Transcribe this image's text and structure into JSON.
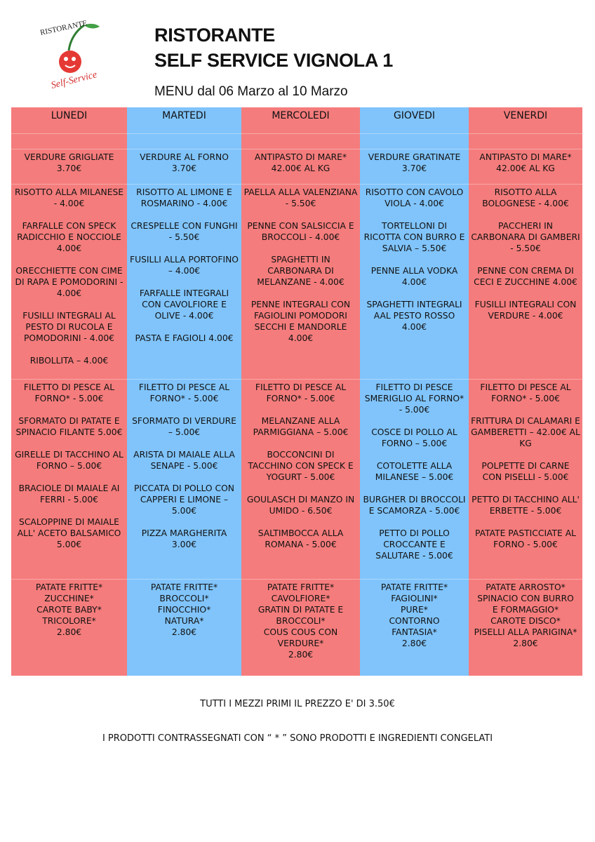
{
  "logo": {
    "top": "RISTORANTE",
    "bottom": "Self-Service"
  },
  "header": {
    "title_line1": "RISTORANTE",
    "title_line2": "SELF SERVICE VIGNOLA 1",
    "subtitle": "MENU dal 06 Marzo al 10 Marzo"
  },
  "columns": [
    {
      "day": "LUNEDI",
      "color": "#f57c7c",
      "antipasti": [
        "VERDURE GRIGLIATE 3.70€"
      ],
      "primi": [
        "RISOTTO ALLA MILANESE - 4.00€",
        "FARFALLE CON SPECK RADICCHIO E NOCCIOLE 4.00€",
        "ORECCHIETTE CON CIME DI RAPA E POMODORINI - 4.00€",
        "FUSILLI INTEGRALI AL PESTO DI RUCOLA E POMODORINI - 4.00€",
        "RIBOLLITA – 4.00€"
      ],
      "secondi": [
        "FILETTO DI PESCE AL FORNO* - 5.00€",
        "SFORMATO DI PATATE E SPINACIO FILANTE 5.00€",
        "GIRELLE DI TACCHINO AL FORNO – 5.00€",
        "BRACIOLE DI MAIALE AI FERRI - 5.00€",
        "SCALOPPINE DI MAIALE ALL' ACETO BALSAMICO 5.00€"
      ],
      "contorni": [
        "PATATE FRITTE*",
        "ZUCCHINE*",
        "CAROTE BABY*",
        "TRICOLORE*",
        "2.80€"
      ]
    },
    {
      "day": "MARTEDI",
      "color": "#80c4fb",
      "antipasti": [
        "VERDURE AL FORNO 3.70€"
      ],
      "primi": [
        "RISOTTO AL LIMONE E ROSMARINO - 4.00€",
        "CRESPELLE CON FUNGHI - 5.50€",
        "FUSILLI ALLA PORTOFINO – 4.00€",
        "FARFALLE INTEGRALI CON CAVOLFIORE E OLIVE - 4.00€",
        "PASTA E FAGIOLI 4.00€"
      ],
      "secondi": [
        "FILETTO DI PESCE AL FORNO* - 5.00€",
        "SFORMATO DI VERDURE – 5.00€",
        "ARISTA DI MAIALE ALLA SENAPE - 5.00€",
        "PICCATA DI POLLO CON CAPPERI E LIMONE – 5.00€",
        "PIZZA MARGHERITA 3.00€"
      ],
      "contorni": [
        "PATATE FRITTE*",
        "BROCCOLI*",
        "FINOCCHIO*",
        "NATURA*",
        "2.80€"
      ]
    },
    {
      "day": "MERCOLEDI",
      "color": "#f57c7c",
      "antipasti": [
        "ANTIPASTO DI MARE* 42.00€ AL KG"
      ],
      "primi": [
        "PAELLA ALLA VALENZIANA - 5.50€",
        "PENNE CON SALSICCIA E BROCCOLI - 4.00€",
        "SPAGHETTI IN CARBONARA DI MELANZANE - 4.00€",
        "PENNE INTEGRALI CON FAGIOLINI POMODORI SECCHI E MANDORLE 4.00€"
      ],
      "secondi": [
        "FILETTO DI PESCE AL FORNO* - 5.00€",
        "MELANZANE ALLA PARMIGGIANA – 5.00€",
        "BOCCONCINI DI TACCHINO CON SPECK E YOGURT - 5.00€",
        "GOULASCH DI MANZO IN UMIDO - 6.50€",
        "SALTIMBOCCA ALLA ROMANA - 5.00€"
      ],
      "contorni": [
        "PATATE FRITTE*",
        "CAVOLFIORE*",
        "GRATIN DI PATATE E",
        "BROCCOLI*",
        "COUS COUS CON",
        "VERDURE*",
        "2.80€"
      ]
    },
    {
      "day": "GIOVEDI",
      "color": "#80c4fb",
      "antipasti": [
        "VERDURE GRATINATE 3.70€"
      ],
      "primi": [
        "RISOTTO CON CAVOLO VIOLA - 4.00€",
        "TORTELLONI DI RICOTTA CON BURRO E SALVIA – 5.50€",
        "PENNE ALLA VODKA 4.00€",
        "SPAGHETTI INTEGRALI AAL PESTO ROSSO 4.00€"
      ],
      "secondi": [
        "FILETTO DI PESCE SMERIGLIO AL FORNO* - 5.00€",
        "COSCE DI POLLO AL FORNO – 5.00€",
        "COTOLETTE ALLA MILANESE – 5.00€",
        "BURGHER DI BROCCOLI E SCAMORZA - 5.00€",
        "PETTO DI POLLO CROCCANTE E SALUTARE - 5.00€"
      ],
      "contorni": [
        "PATATE FRITTE*",
        "FAGIOLINI*",
        "PURE*",
        "CONTORNO",
        "FANTASIA*",
        "2.80€"
      ]
    },
    {
      "day": "VENERDI",
      "color": "#f57c7c",
      "antipasti": [
        "ANTIPASTO DI MARE* 42.00€ AL KG"
      ],
      "primi": [
        "RISOTTO ALLA BOLOGNESE - 4.00€",
        "PACCHERI IN CARBONARA DI GAMBERI - 5.50€",
        "PENNE CON CREMA DI CECI E ZUCCHINE 4.00€",
        "FUSILLI INTEGRALI CON VERDURE - 4.00€"
      ],
      "secondi": [
        "FILETTO DI PESCE AL FORNO* - 5.00€",
        "FRITTURA DI CALAMARI E GAMBERETTI – 42.00€ AL KG",
        "POLPETTE DI CARNE CON PISELLI - 5.00€",
        "PETTO DI TACCHINO ALL' ERBETTE - 5.00€",
        "PATATE PASTICCIATE AL FORNO - 5.00€"
      ],
      "contorni": [
        "PATATE ARROSTO*",
        "SPINACIO CON BURRO",
        "E FORMAGGIO*",
        "CAROTE DISCO*",
        "PISELLI ALLA PARIGINA*",
        "2.80€"
      ]
    }
  ],
  "footer": {
    "note1": "TUTTI I MEZZI PRIMI IL PREZZO E' DI 3.50€",
    "note2": "I PRODOTTI CONTRASSEGNATI CON “ * ” SONO PRODOTTI E INGREDIENTI CONGELATI"
  }
}
